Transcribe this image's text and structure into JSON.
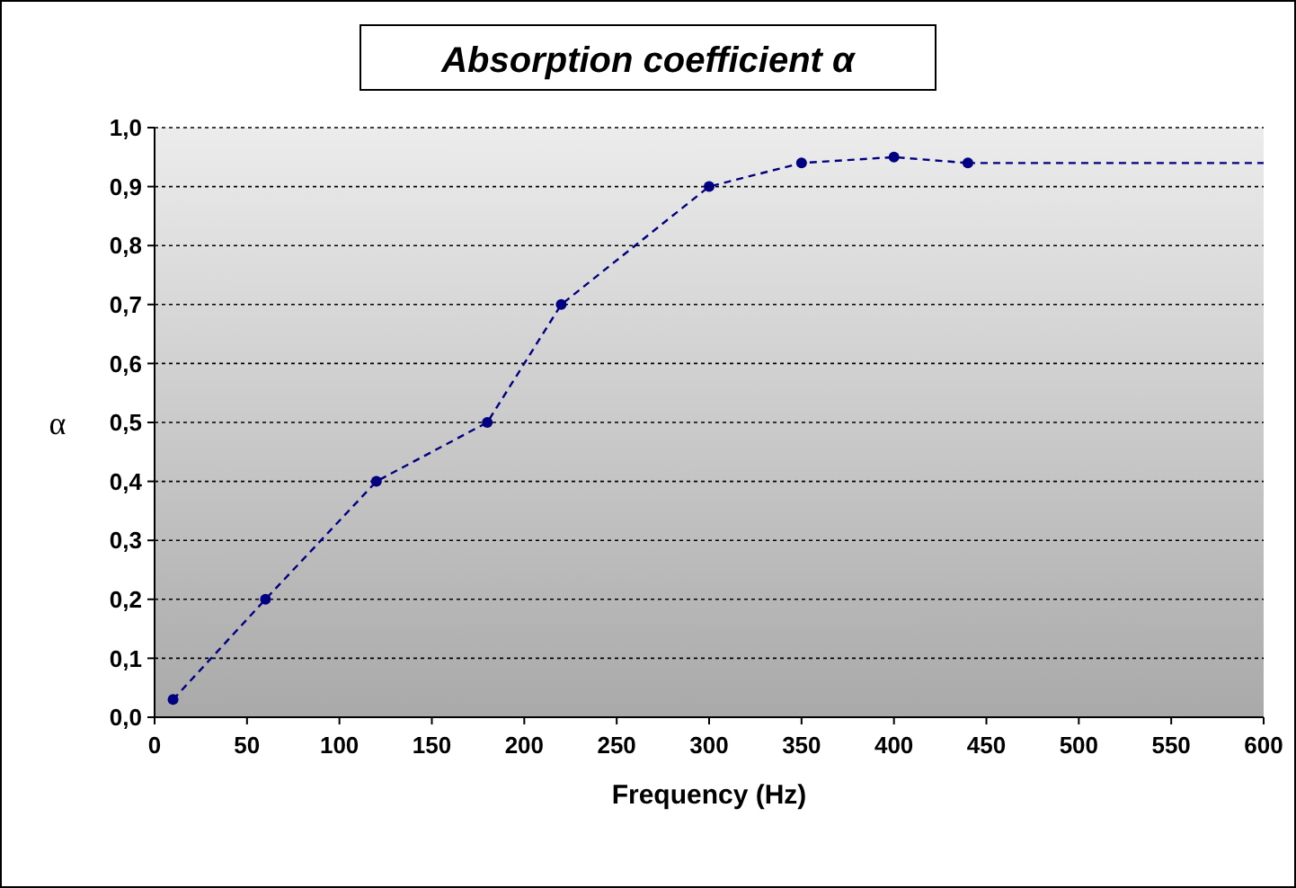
{
  "chart_data": {
    "type": "line",
    "title": "Absorption coefficient α",
    "xlabel": "Frequency (Hz)",
    "ylabel": "α",
    "xlim": [
      0,
      600
    ],
    "xticks": [
      0,
      50,
      100,
      150,
      200,
      250,
      300,
      350,
      400,
      450,
      500,
      550,
      600
    ],
    "ylim": [
      0,
      1
    ],
    "yticks": [
      {
        "value": 0,
        "label": "0,0"
      },
      {
        "value": 0.1,
        "label": "0,1"
      },
      {
        "value": 0.2,
        "label": "0,2"
      },
      {
        "value": 0.3,
        "label": "0,3"
      },
      {
        "value": 0.4,
        "label": "0,4"
      },
      {
        "value": 0.5,
        "label": "0,5"
      },
      {
        "value": 0.6,
        "label": "0,6"
      },
      {
        "value": 0.7,
        "label": "0,7"
      },
      {
        "value": 0.8,
        "label": "0,8"
      },
      {
        "value": 0.9,
        "label": "0,9"
      },
      {
        "value": 1,
        "label": "1,0"
      }
    ],
    "grid": "y",
    "marker": "circle",
    "line_style": "dashed",
    "series": [
      {
        "color": "#000080",
        "x": [
          10,
          60,
          120,
          180,
          220,
          300,
          350,
          400,
          440
        ],
        "values": [
          0.03,
          0.2,
          0.4,
          0.5,
          0.7,
          0.9,
          0.94,
          0.95,
          0.94
        ]
      },
      {
        "color": "#000080",
        "x": [
          440,
          600
        ],
        "values": [
          0.94,
          0.94
        ],
        "marker": "none"
      }
    ]
  }
}
